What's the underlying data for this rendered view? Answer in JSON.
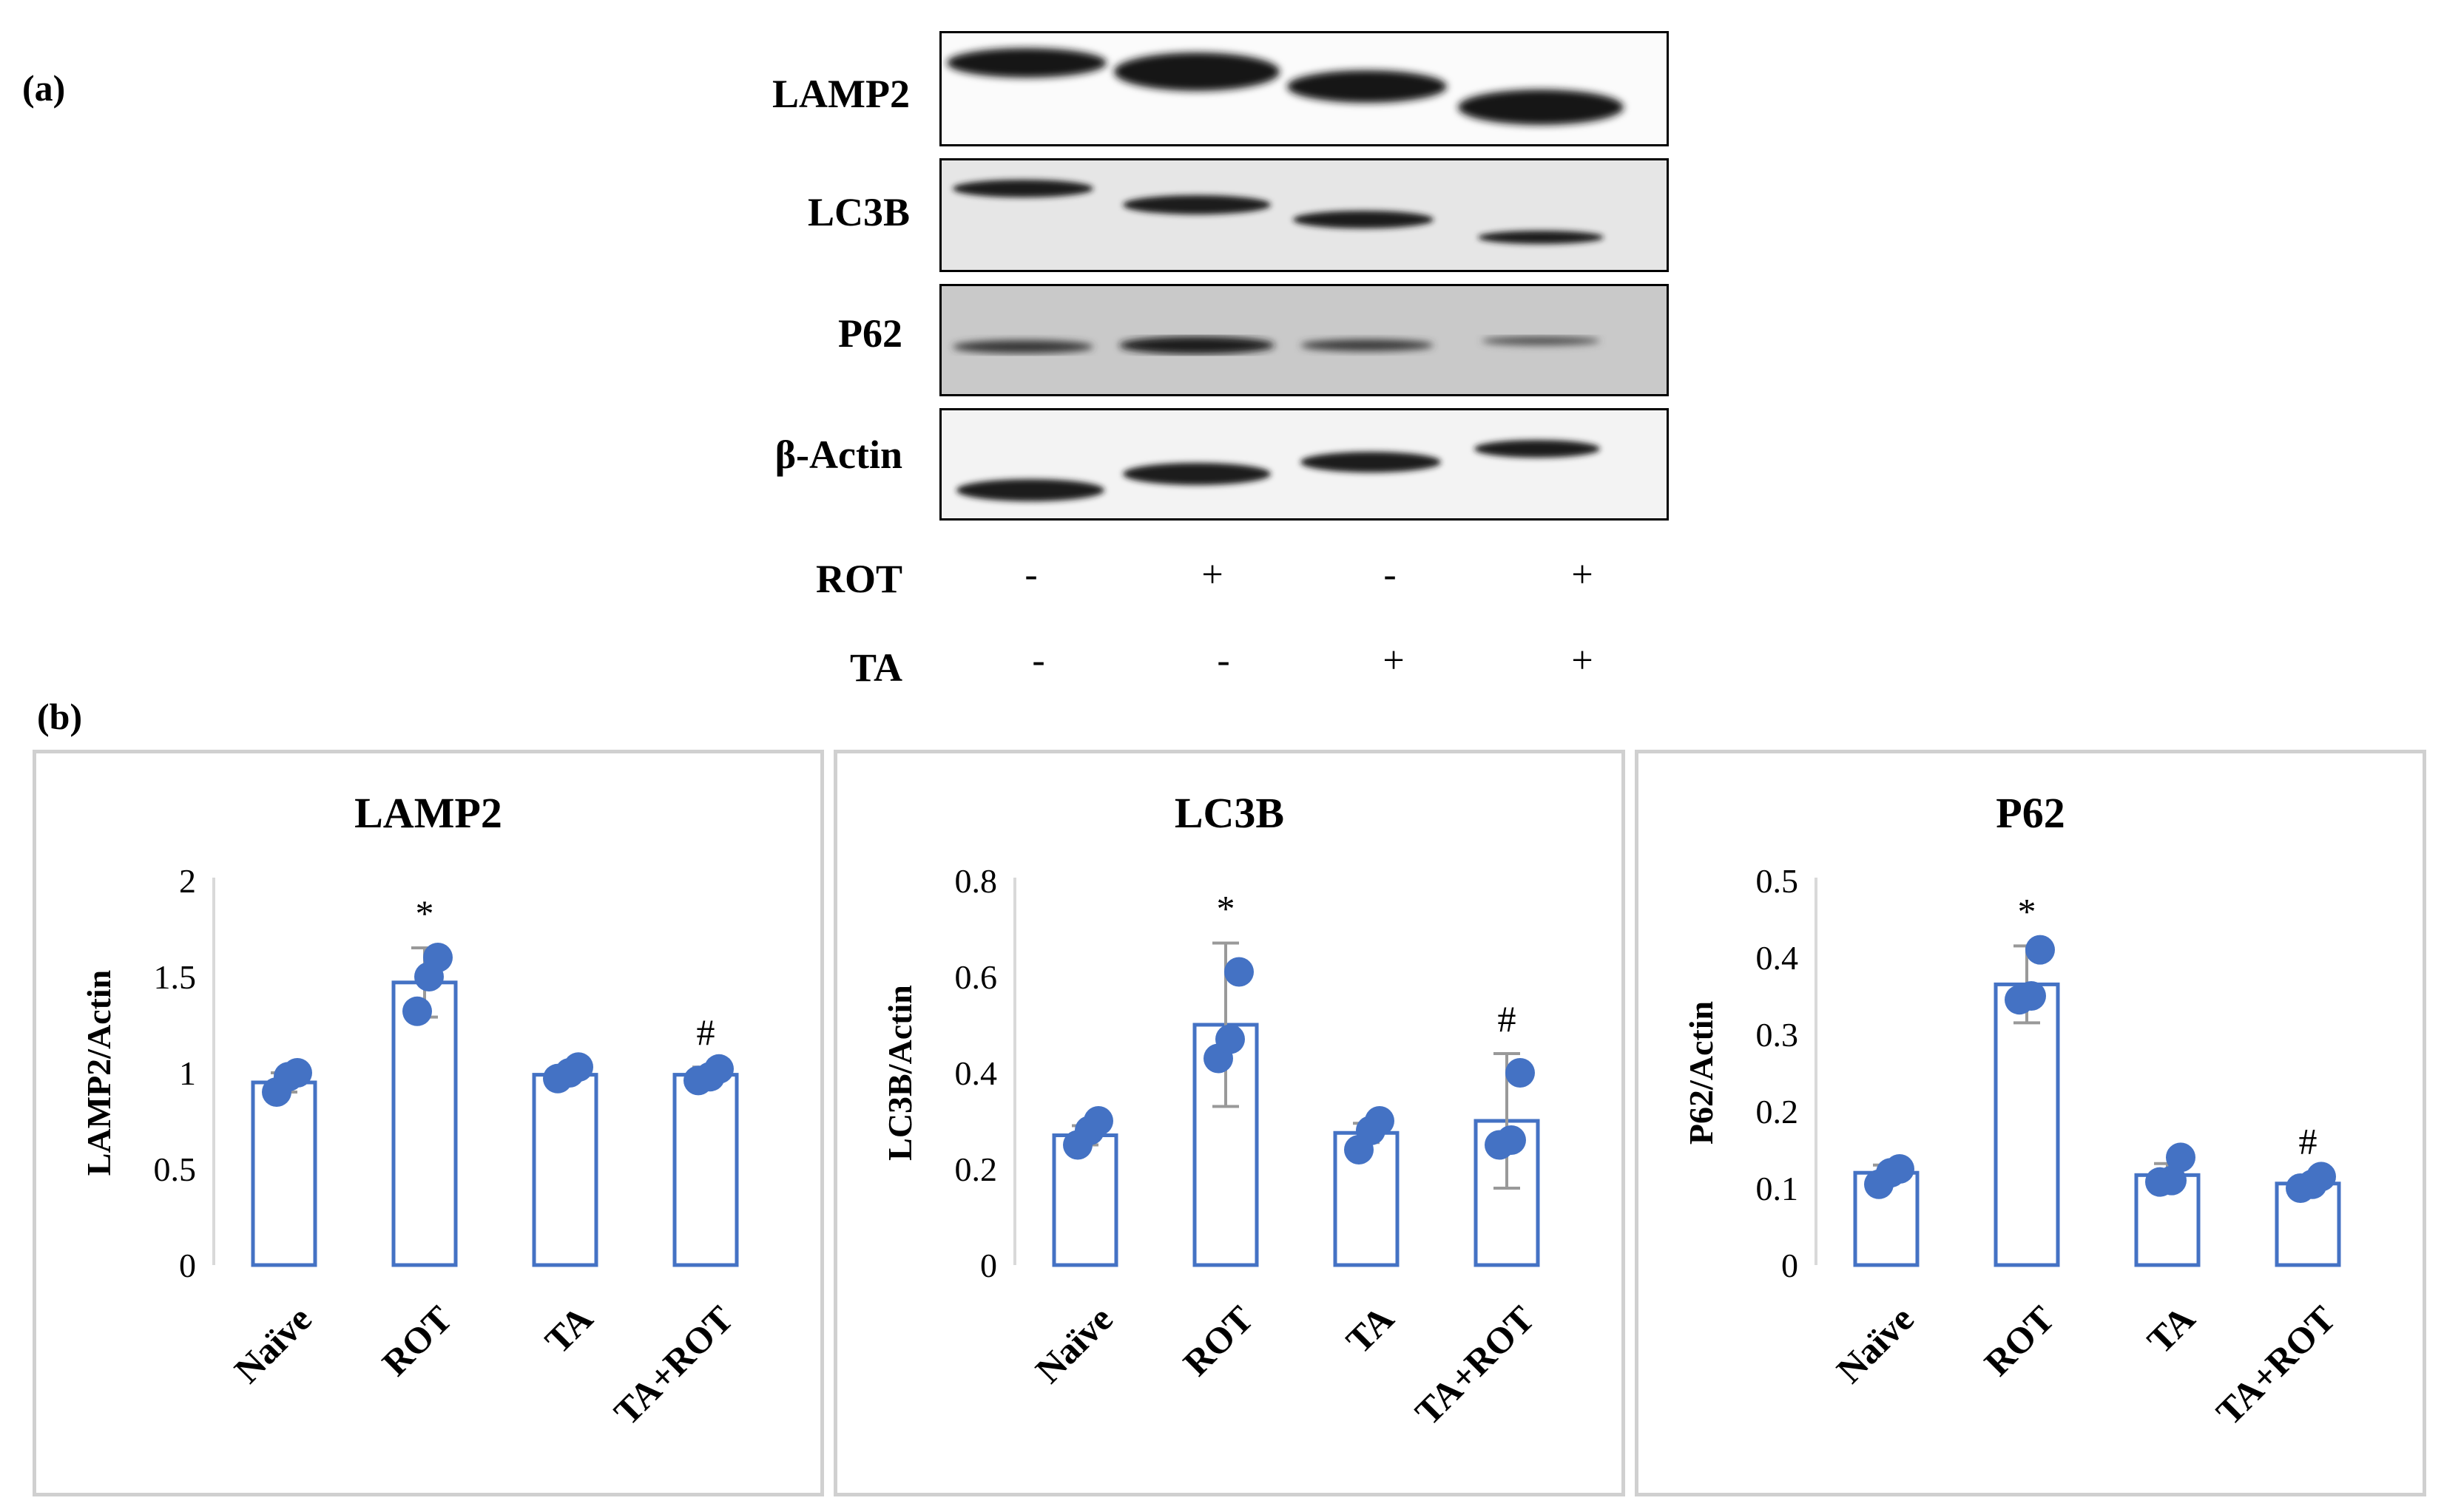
{
  "panel_a_label": "(a)",
  "panel_b_label": "(b)",
  "blot": {
    "proteins": [
      "LAMP2",
      "LC3B",
      "P62",
      "β-Actin"
    ],
    "treatments": [
      {
        "name": "ROT",
        "symbols": [
          "-",
          "+",
          "-",
          "+"
        ]
      },
      {
        "name": "TA",
        "symbols": [
          "-",
          "-",
          "+",
          "+"
        ]
      }
    ]
  },
  "colors": {
    "series": "#4472C4",
    "errorbar": "#999999",
    "frame": "#d0d0d0"
  },
  "chart_data": [
    {
      "type": "bar",
      "title": "LAMP2",
      "ylabel": "LAMP2/Actin",
      "xlabel": "",
      "categories": [
        "Naïve",
        "ROT",
        "TA",
        "TA+ROT"
      ],
      "values": [
        0.95,
        1.47,
        0.99,
        0.99
      ],
      "errors": [
        0.05,
        0.18,
        0.04,
        0.04
      ],
      "points": [
        [
          0.9,
          0.98,
          1.0
        ],
        [
          1.32,
          1.5,
          1.6
        ],
        [
          0.97,
          1.0,
          1.03
        ],
        [
          0.96,
          0.98,
          1.02
        ]
      ],
      "annotations": [
        "",
        "*",
        "",
        "#"
      ],
      "ylim": [
        0,
        2
      ],
      "yticks": [
        0,
        0.5,
        1,
        1.5,
        2
      ],
      "ytick_labels": [
        "0",
        "0.5",
        "1",
        "1.5",
        "2"
      ]
    },
    {
      "type": "bar",
      "title": "LC3B",
      "ylabel": "LC3B/Actin",
      "xlabel": "",
      "categories": [
        "Naïve",
        "ROT",
        "TA",
        "TA+ROT"
      ],
      "values": [
        0.27,
        0.5,
        0.275,
        0.3
      ],
      "errors": [
        0.02,
        0.17,
        0.02,
        0.14
      ],
      "points": [
        [
          0.25,
          0.28,
          0.3
        ],
        [
          0.43,
          0.47,
          0.61
        ],
        [
          0.24,
          0.28,
          0.3
        ],
        [
          0.25,
          0.26,
          0.4
        ]
      ],
      "annotations": [
        "",
        "*",
        "",
        "#"
      ],
      "ylim": [
        0,
        0.8
      ],
      "yticks": [
        0,
        0.2,
        0.4,
        0.6,
        0.8
      ],
      "ytick_labels": [
        "0",
        "0.2",
        "0.4",
        "0.6",
        "0.8"
      ]
    },
    {
      "type": "bar",
      "title": "P62",
      "ylabel": "P62/Actin",
      "xlabel": "",
      "categories": [
        "Naïve",
        "ROT",
        "TA",
        "TA+ROT"
      ],
      "values": [
        0.12,
        0.365,
        0.117,
        0.106
      ],
      "errors": [
        0.01,
        0.05,
        0.015,
        0.01
      ],
      "points": [
        [
          0.105,
          0.12,
          0.125
        ],
        [
          0.345,
          0.35,
          0.41
        ],
        [
          0.108,
          0.11,
          0.14
        ],
        [
          0.1,
          0.105,
          0.115
        ]
      ],
      "annotations": [
        "",
        "*",
        "",
        "#"
      ],
      "ylim": [
        0,
        0.5
      ],
      "yticks": [
        0,
        0.1,
        0.2,
        0.3,
        0.4,
        0.5
      ],
      "ytick_labels": [
        "0",
        "0.1",
        "0.2",
        "0.3",
        "0.4",
        "0.5"
      ]
    }
  ]
}
